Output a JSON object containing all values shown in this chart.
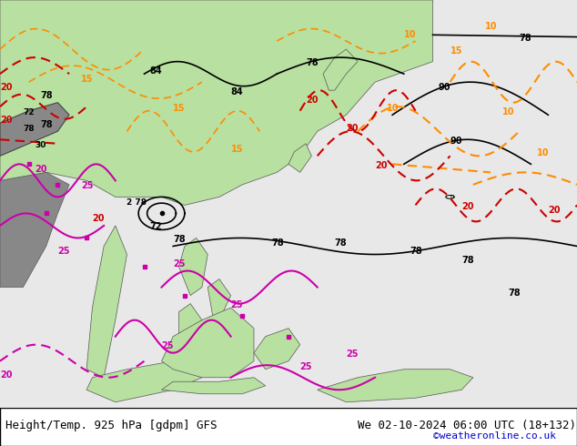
{
  "title_left": "Height/Temp. 925 hPa [gdpm] GFS",
  "title_right": "We 02-10-2024 06:00 UTC (18+132)",
  "credit": "©weatheronline.co.uk",
  "bg_color": "#e8e8e8",
  "land_color_green": "#b8e0a0",
  "land_color_dark": "#888888",
  "water_color": "#d8d8d8",
  "contour_color_black": "#000000",
  "contour_color_orange": "#ff8c00",
  "contour_color_red": "#cc0000",
  "contour_color_magenta": "#cc00aa",
  "figsize": [
    6.34,
    4.9
  ],
  "dpi": 100,
  "bottom_bar_color": "#ffffff",
  "title_fontsize": 9,
  "credit_fontsize": 8,
  "credit_color": "#0000cc"
}
